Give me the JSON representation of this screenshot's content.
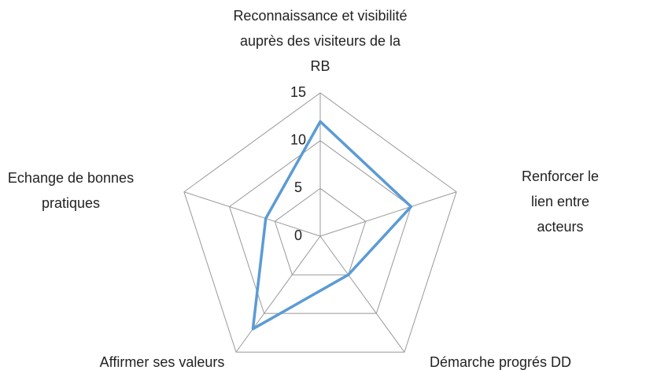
{
  "chart_data": {
    "type": "radar",
    "categories": [
      "Reconnaissance et visibilité\nauprès des visiteurs de la\nRB",
      "Renforcer le lien entre\nacteurs",
      "Démarche progrés DD",
      "Affirmer ses valeurs",
      "Echange de bonnes\npratiques"
    ],
    "values": [
      12,
      10,
      5,
      12,
      6
    ],
    "color": "#5b9bd5",
    "ylim": [
      0,
      15
    ],
    "yticks": [
      0,
      5,
      10,
      15
    ],
    "grid": true
  }
}
